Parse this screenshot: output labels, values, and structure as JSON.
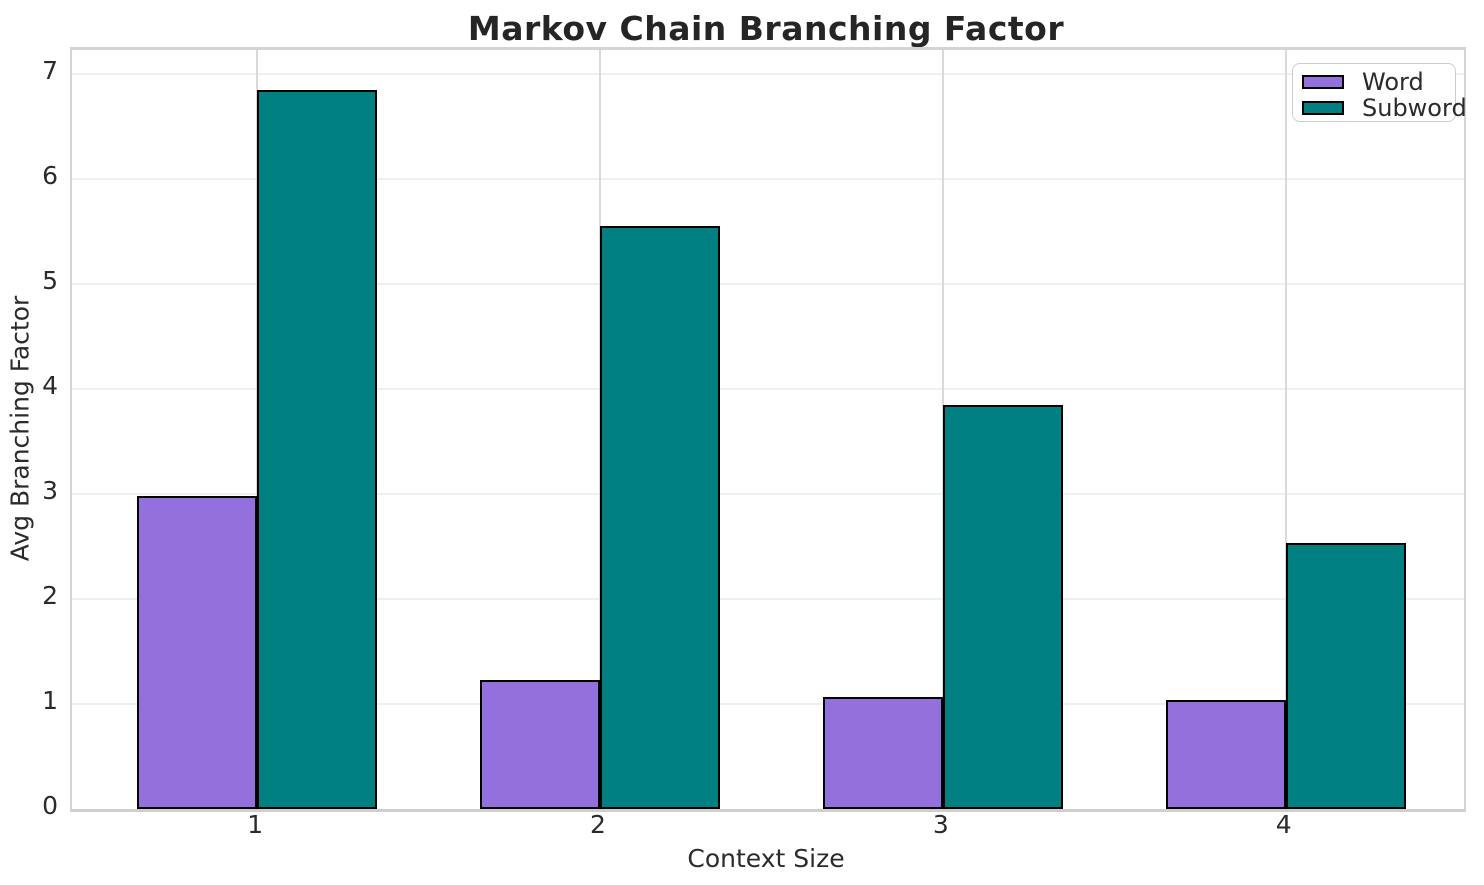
{
  "chart_data": {
    "type": "bar",
    "title": "Markov Chain Branching Factor",
    "xlabel": "Context Size",
    "ylabel": "Avg Branching Factor",
    "categories": [
      "1",
      "2",
      "3",
      "4"
    ],
    "x_positions": [
      1,
      2,
      3,
      4
    ],
    "series": [
      {
        "name": "Word",
        "color": "#9370DB",
        "values": [
          2.98,
          1.23,
          1.07,
          1.04
        ]
      },
      {
        "name": "Subword",
        "color": "#008080",
        "values": [
          6.85,
          5.55,
          3.85,
          2.53
        ]
      }
    ],
    "bar_width": 0.35,
    "bar_edge_color": "#000000",
    "yticks": [
      0,
      1,
      2,
      3,
      4,
      5,
      6,
      7
    ],
    "ylim": [
      0,
      7.23
    ],
    "xlim": [
      0.46,
      4.52
    ],
    "grid": true,
    "legend_position": "upper right",
    "legend_items": [
      "Word",
      "Subword"
    ]
  }
}
